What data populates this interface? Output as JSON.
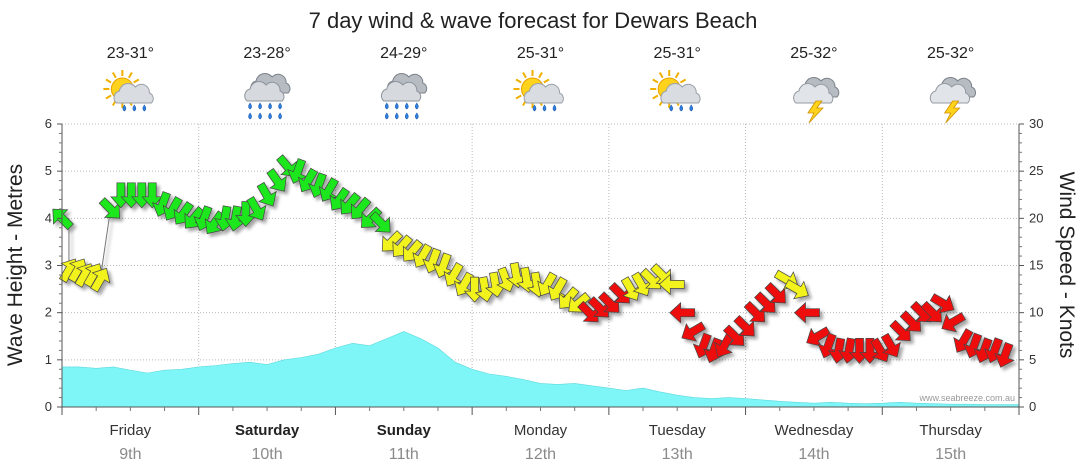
{
  "chart_data": {
    "type": "line",
    "title": "7 day wind & wave forecast for Dewars Beach",
    "ylabel": "Wave Height - Metres",
    "y2label": "Wind Speed - Knots",
    "ylim": [
      0,
      6
    ],
    "y2lim": [
      0,
      30
    ],
    "yticks": [
      "0",
      "1",
      "2",
      "3",
      "4",
      "5",
      "6"
    ],
    "y2ticks": [
      "0",
      "5",
      "10",
      "15",
      "20",
      "25",
      "30"
    ],
    "grid": true,
    "days": [
      {
        "name": "Friday",
        "date": "9th",
        "bold": false,
        "temp": "23-31°",
        "icon": "sun-cloud-showers-icon"
      },
      {
        "name": "Saturday",
        "date": "10th",
        "bold": true,
        "temp": "23-28°",
        "icon": "rain-cloud-icon"
      },
      {
        "name": "Sunday",
        "date": "11th",
        "bold": true,
        "temp": "24-29°",
        "icon": "rain-cloud-icon"
      },
      {
        "name": "Monday",
        "date": "12th",
        "bold": false,
        "temp": "25-31°",
        "icon": "sun-cloud-showers-icon"
      },
      {
        "name": "Tuesday",
        "date": "13th",
        "bold": false,
        "temp": "25-31°",
        "icon": "sun-cloud-showers-icon"
      },
      {
        "name": "Wednesday",
        "date": "14th",
        "bold": false,
        "temp": "25-32°",
        "icon": "storm-cloud-icon"
      },
      {
        "name": "Thursday",
        "date": "15th",
        "bold": false,
        "temp": "25-32°",
        "icon": "storm-cloud-icon"
      }
    ],
    "wave_height": [
      0.85,
      0.85,
      0.82,
      0.85,
      0.78,
      0.72,
      0.78,
      0.8,
      0.85,
      0.88,
      0.92,
      0.95,
      0.9,
      1.0,
      1.05,
      1.12,
      1.25,
      1.35,
      1.3,
      1.45,
      1.6,
      1.45,
      1.25,
      0.95,
      0.8,
      0.7,
      0.65,
      0.58,
      0.5,
      0.48,
      0.5,
      0.45,
      0.4,
      0.35,
      0.4,
      0.32,
      0.25,
      0.2,
      0.18,
      0.2,
      0.18,
      0.15,
      0.12,
      0.1,
      0.08,
      0.1,
      0.08,
      0.07,
      0.08,
      0.1,
      0.08,
      0.07,
      0.06,
      0.06,
      0.05,
      0.05,
      0.05
    ],
    "wind_series": [
      {
        "name": "wind",
        "color_key": "mixed",
        "points": [
          [
            0,
            20,
            225,
            "green"
          ],
          [
            0.2,
            14.5,
            300,
            "yellow"
          ],
          [
            0.45,
            14.5,
            300,
            "yellow"
          ],
          [
            0.65,
            14,
            300,
            "yellow"
          ],
          [
            0.9,
            14,
            300,
            "yellow"
          ],
          [
            1.1,
            13.5,
            300,
            "yellow"
          ],
          [
            1.4,
            21,
            45,
            "green"
          ],
          [
            1.7,
            22.5,
            90,
            "green"
          ],
          [
            2.0,
            22.5,
            90,
            "green"
          ],
          [
            2.3,
            22.5,
            90,
            "green"
          ],
          [
            2.6,
            22.5,
            90,
            "green"
          ],
          [
            2.9,
            21.5,
            110,
            "green"
          ],
          [
            3.2,
            21,
            120,
            "green"
          ],
          [
            3.5,
            20.5,
            125,
            "green"
          ],
          [
            3.8,
            20,
            130,
            "green"
          ],
          [
            4.1,
            20,
            110,
            "green"
          ],
          [
            4.4,
            19.5,
            125,
            "green"
          ],
          [
            4.7,
            20,
            100,
            "green"
          ],
          [
            5.0,
            20,
            100,
            "green"
          ],
          [
            5.3,
            20.5,
            90,
            "green"
          ],
          [
            5.6,
            21,
            60,
            "green"
          ],
          [
            5.9,
            22.5,
            60,
            "green"
          ],
          [
            6.2,
            24,
            55,
            "green"
          ],
          [
            6.5,
            25.5,
            50,
            "green"
          ],
          [
            6.8,
            25,
            110,
            "green"
          ],
          [
            7.1,
            24,
            120,
            "green"
          ],
          [
            7.4,
            23.5,
            110,
            "green"
          ],
          [
            7.7,
            23,
            120,
            "green"
          ],
          [
            8.0,
            22,
            125,
            "green"
          ],
          [
            8.3,
            21.5,
            130,
            "green"
          ],
          [
            8.6,
            21,
            130,
            "green"
          ],
          [
            8.9,
            20,
            135,
            "green"
          ],
          [
            9.2,
            19.5,
            45,
            "green"
          ],
          [
            9.5,
            17.5,
            135,
            "yellow"
          ],
          [
            9.8,
            17,
            130,
            "yellow"
          ],
          [
            10.1,
            16.5,
            130,
            "yellow"
          ],
          [
            10.4,
            16,
            120,
            "yellow"
          ],
          [
            10.7,
            15.5,
            110,
            "yellow"
          ],
          [
            11.0,
            15,
            110,
            "yellow"
          ],
          [
            11.3,
            14,
            120,
            "yellow"
          ],
          [
            11.6,
            13,
            120,
            "yellow"
          ],
          [
            11.9,
            12.5,
            90,
            "yellow"
          ],
          [
            12.2,
            12.5,
            80,
            "yellow"
          ],
          [
            12.5,
            13,
            80,
            "yellow"
          ],
          [
            12.8,
            13.5,
            70,
            "yellow"
          ],
          [
            13.1,
            14,
            80,
            "yellow"
          ],
          [
            13.4,
            13.5,
            80,
            "yellow"
          ],
          [
            13.7,
            13,
            80,
            "yellow"
          ],
          [
            14.0,
            13,
            120,
            "yellow"
          ],
          [
            14.3,
            12.5,
            120,
            "yellow"
          ],
          [
            14.6,
            11.5,
            130,
            "yellow"
          ],
          [
            14.9,
            11,
            140,
            "yellow"
          ],
          [
            15.2,
            10,
            45,
            "red"
          ],
          [
            15.5,
            10.5,
            45,
            "red"
          ],
          [
            15.8,
            11,
            45,
            "red"
          ],
          [
            16.1,
            12,
            45,
            "red"
          ],
          [
            16.4,
            12.5,
            60,
            "yellow"
          ],
          [
            16.7,
            13,
            60,
            "yellow"
          ],
          [
            17.0,
            13.5,
            45,
            "yellow"
          ],
          [
            17.3,
            14,
            45,
            "yellow"
          ],
          [
            17.6,
            13,
            180,
            "yellow"
          ],
          [
            17.9,
            10,
            180,
            "red"
          ],
          [
            18.2,
            8,
            150,
            "red"
          ],
          [
            18.5,
            6.5,
            110,
            "red"
          ],
          [
            18.8,
            6,
            110,
            "red"
          ],
          [
            19.1,
            6.5,
            120,
            "red"
          ],
          [
            19.4,
            7.5,
            45,
            "red"
          ],
          [
            19.7,
            8.5,
            45,
            "red"
          ],
          [
            20.0,
            10,
            45,
            "red"
          ],
          [
            20.3,
            11,
            45,
            "red"
          ],
          [
            20.6,
            12,
            45,
            "red"
          ],
          [
            20.9,
            13.5,
            30,
            "yellow"
          ],
          [
            21.2,
            12.5,
            30,
            "yellow"
          ],
          [
            21.5,
            10,
            180,
            "red"
          ],
          [
            21.8,
            7.5,
            150,
            "red"
          ],
          [
            22.1,
            6.5,
            110,
            "red"
          ],
          [
            22.4,
            6,
            100,
            "red"
          ],
          [
            22.7,
            6,
            100,
            "red"
          ],
          [
            23.0,
            6,
            90,
            "red"
          ],
          [
            23.3,
            6,
            90,
            "red"
          ],
          [
            23.6,
            6,
            60,
            "red"
          ],
          [
            23.9,
            6.5,
            60,
            "red"
          ],
          [
            24.2,
            8,
            45,
            "red"
          ],
          [
            24.5,
            9,
            45,
            "red"
          ],
          [
            24.8,
            10,
            45,
            "red"
          ],
          [
            25.1,
            10,
            45,
            "red"
          ],
          [
            25.4,
            11,
            30,
            "red"
          ],
          [
            25.7,
            9,
            150,
            "red"
          ],
          [
            26.0,
            7,
            120,
            "red"
          ],
          [
            26.3,
            6.5,
            110,
            "red"
          ],
          [
            26.6,
            6,
            110,
            "red"
          ],
          [
            26.9,
            6,
            110,
            "red"
          ],
          [
            27.2,
            5.5,
            110,
            "red"
          ]
        ]
      }
    ],
    "wind_colors": {
      "green": "#1ee61e",
      "yellow": "#f2f21a",
      "red": "#ee1111"
    },
    "wave_color": "#7ef6f8",
    "credit": "www.seabreeze.com.au"
  }
}
